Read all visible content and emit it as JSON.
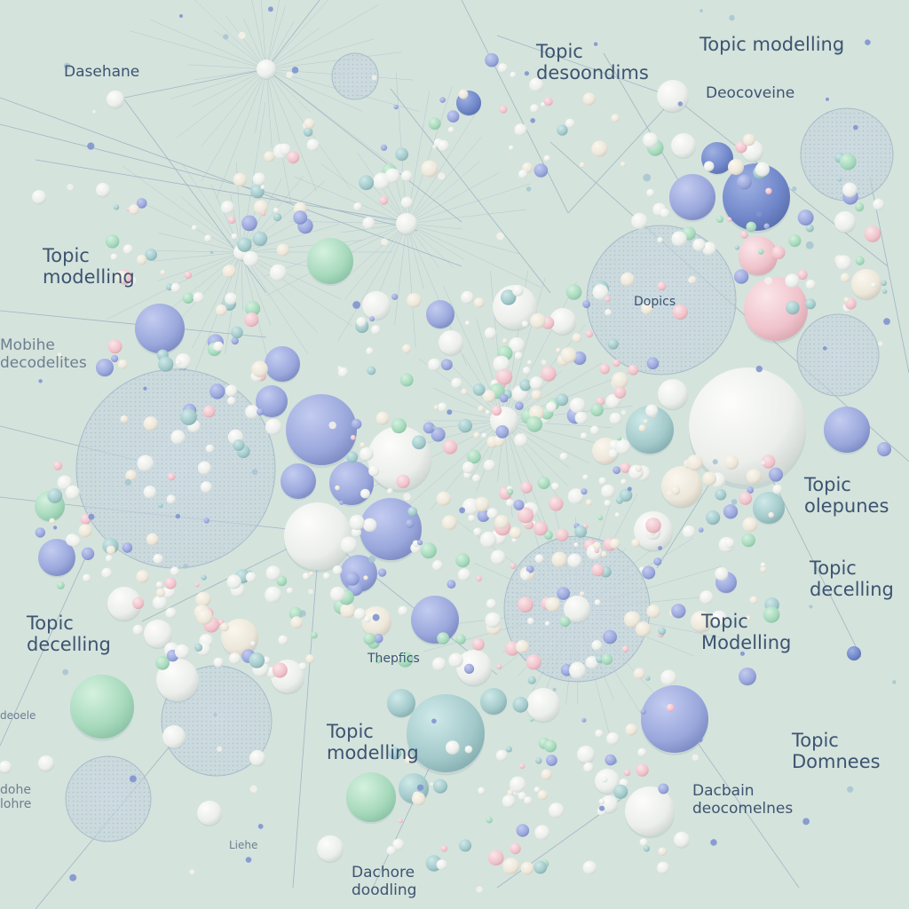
{
  "colors": {
    "background": "#d5e3dd",
    "bubble_white": "#eef0ee",
    "bubble_blue": "#9aa8dd",
    "bubble_green": "#a9dcc0",
    "bubble_pink": "#f1c4cc",
    "bubble_teal": "#9fc3c4",
    "line": "#8ea7b8",
    "label": "#3c5470"
  },
  "labels": [
    {
      "id": "l1",
      "text": "Dasehane"
    },
    {
      "id": "l2",
      "text": "Topic\ndesoondims"
    },
    {
      "id": "l3",
      "text": "Topic modelling"
    },
    {
      "id": "l4",
      "text": "Deocoveine"
    },
    {
      "id": "l5",
      "text": "Topic\nmodelling"
    },
    {
      "id": "l6",
      "text": "Dopics"
    },
    {
      "id": "l7",
      "text": "Mobihe\ndecodelites"
    },
    {
      "id": "l8",
      "text": "Topic\nolepunes"
    },
    {
      "id": "l9",
      "text": "Topic\ndecelling"
    },
    {
      "id": "l10",
      "text": "Topic\nModelling"
    },
    {
      "id": "l11",
      "text": "Topic\ndecelling"
    },
    {
      "id": "l12",
      "text": "Thepfics"
    },
    {
      "id": "l13",
      "text": "Topic\nmodelling"
    },
    {
      "id": "l14",
      "text": "Topic\nDomnees"
    },
    {
      "id": "l15",
      "text": "Dacbain\ndeocomelnes"
    },
    {
      "id": "l16",
      "text": "Dachore\ndoodling"
    },
    {
      "id": "l17",
      "text": "Liehe"
    },
    {
      "id": "l18",
      "text": "dohe\nlohre"
    },
    {
      "id": "l19",
      "text": "deoele"
    }
  ]
}
